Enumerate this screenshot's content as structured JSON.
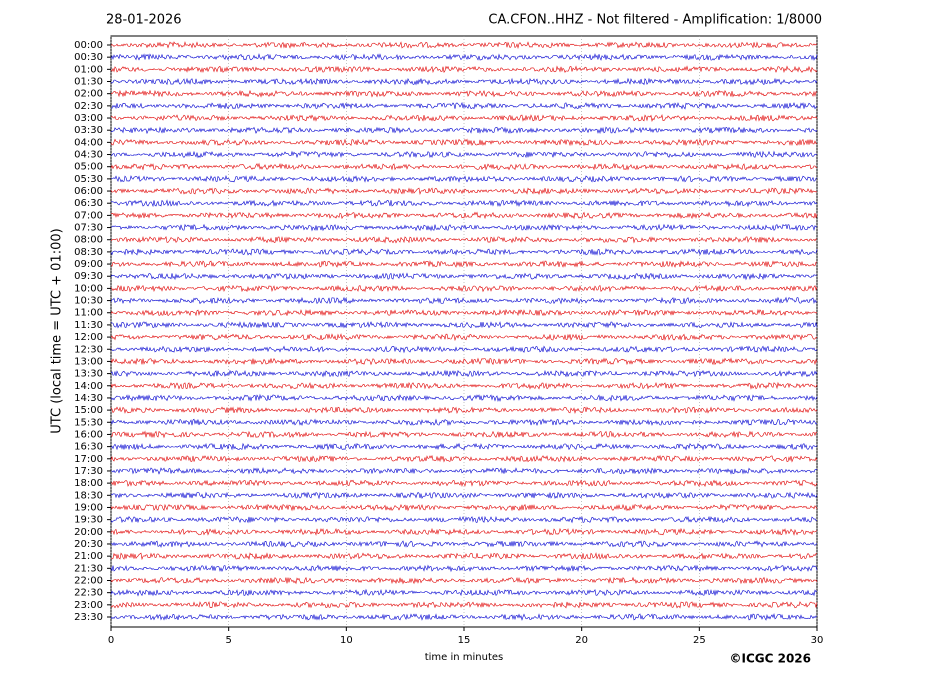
{
  "chart_data": {
    "type": "helicorder",
    "date": "28-01-2026",
    "title": "CA.CFON..HHZ - Not filtered - Amplification: 1/8000",
    "xlabel": "time in minutes",
    "ylabel": "UTC (local time = UTC + 01:00)",
    "credit": "©ICGC 2026",
    "xlim": [
      0,
      30
    ],
    "xticks": [
      0,
      5,
      10,
      15,
      20,
      25,
      30
    ],
    "grid": true,
    "colors": [
      "#e00000",
      "#0000d0"
    ],
    "categories": [
      "00:00",
      "00:30",
      "01:00",
      "01:30",
      "02:00",
      "02:30",
      "03:00",
      "03:30",
      "04:00",
      "04:30",
      "05:00",
      "05:30",
      "06:00",
      "06:30",
      "07:00",
      "07:30",
      "08:00",
      "08:30",
      "09:00",
      "09:30",
      "10:00",
      "10:30",
      "11:00",
      "11:30",
      "12:00",
      "12:30",
      "13:00",
      "13:30",
      "14:00",
      "14:30",
      "15:00",
      "15:30",
      "16:00",
      "16:30",
      "17:00",
      "17:30",
      "18:00",
      "18:30",
      "19:00",
      "19:30",
      "20:00",
      "20:30",
      "21:00",
      "21:30",
      "22:00",
      "22:30",
      "23:00",
      "23:30"
    ]
  }
}
